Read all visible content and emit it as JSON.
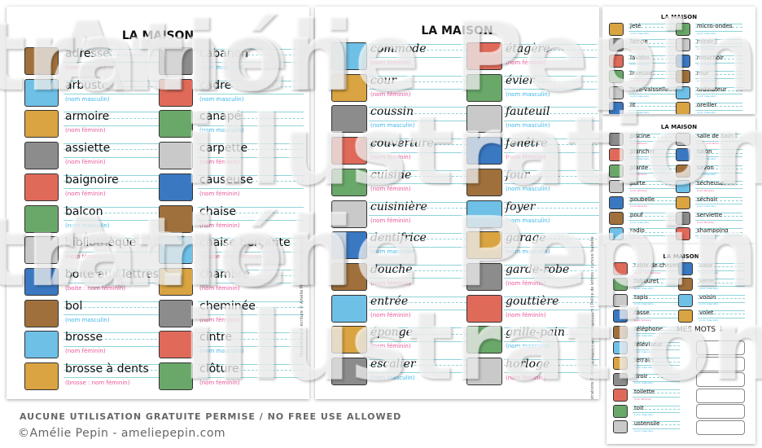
{
  "cards": [
    {
      "title": "LA MAISON",
      "style": "print",
      "side_text": "Illustrations et écriture © Amélie Pepin • ameliepepin.com",
      "columns": [
        [
          {
            "word": "adresse",
            "note": "(nom féminin)",
            "g": "f",
            "icon": "house-entrance"
          },
          {
            "word": "arbuste",
            "note": "(nom masculin)",
            "g": "m",
            "icon": "house-shrub"
          },
          {
            "word": "armoire",
            "note": "(nom féminin)",
            "g": "f",
            "icon": "cabinet"
          },
          {
            "word": "assiette",
            "note": "(nom féminin)",
            "g": "f",
            "icon": "plate"
          },
          {
            "word": "baignoire",
            "note": "(nom féminin)",
            "g": "f",
            "icon": "bathtub"
          },
          {
            "word": "balcon",
            "note": "(nom masculin)",
            "g": "m",
            "icon": "balcony"
          },
          {
            "word": "bibliothèque",
            "note": "(nom féminin)",
            "g": "f",
            "icon": "bookshelf"
          },
          {
            "word": "boite aux lettres",
            "note": "(boite : nom féminin)",
            "g": "f",
            "icon": "mailbox"
          },
          {
            "word": "bol",
            "note": "(nom masculin)",
            "g": "m",
            "icon": "bowl"
          },
          {
            "word": "brosse",
            "note": "(nom féminin)",
            "g": "f",
            "icon": "hairbrush"
          },
          {
            "word": "brosse à dents",
            "note": "(brosse : nom féminin)",
            "g": "f",
            "icon": "toothbrush"
          }
        ],
        [
          {
            "word": "cabanon",
            "note": "(nom masculin)",
            "g": "m",
            "icon": "shed"
          },
          {
            "word": "cadre",
            "note": "(nom masculin)",
            "g": "m",
            "icon": "picture-frame"
          },
          {
            "word": "canapé",
            "note": "(nom masculin)",
            "g": "m",
            "icon": "sofa"
          },
          {
            "word": "carpette",
            "note": "(nom féminin)",
            "g": "f",
            "icon": "rug"
          },
          {
            "word": "causeuse",
            "note": "(nom féminin)",
            "g": "f",
            "icon": "loveseat"
          },
          {
            "word": "chaise",
            "note": "(nom féminin)",
            "g": "f",
            "icon": "chair"
          },
          {
            "word": "chaise berçante",
            "note": "(chaise : nom féminin)",
            "g": "f",
            "icon": "rocking-chair"
          },
          {
            "word": "chambre",
            "note": "(nom féminin)",
            "g": "f",
            "icon": "bedroom"
          },
          {
            "word": "cheminée",
            "note": "(nom féminin)",
            "g": "f",
            "icon": "chimney"
          },
          {
            "word": "cintre",
            "note": "(nom masculin)",
            "g": "m",
            "icon": "hanger"
          },
          {
            "word": "clôture",
            "note": "(nom féminin)",
            "g": "f",
            "icon": "fence"
          }
        ]
      ]
    },
    {
      "title": "LA MAISON",
      "style": "cursive",
      "side_text": "Illustrations © Amélie Pepin • ameliepepin.com | Police de lettres : cursive Isabelle",
      "columns": [
        [
          {
            "word": "commode",
            "note": "(nom féminin)",
            "g": "f",
            "icon": "dresser"
          },
          {
            "word": "cour",
            "note": "(nom féminin)",
            "g": "f",
            "icon": "yard"
          },
          {
            "word": "coussin",
            "note": "(nom masculin)",
            "g": "m",
            "icon": "cushion"
          },
          {
            "word": "couverture",
            "note": "(nom féminin)",
            "g": "f",
            "icon": "house-roof"
          },
          {
            "word": "cuisine",
            "note": "(nom féminin)",
            "g": "f",
            "icon": "kitchen"
          },
          {
            "word": "cuisinière",
            "note": "(nom féminin)",
            "g": "f",
            "icon": "stove"
          },
          {
            "word": "dentifrice",
            "note": "(nom masculin)",
            "g": "m",
            "icon": "toothpaste"
          },
          {
            "word": "douche",
            "note": "(nom féminin)",
            "g": "f",
            "icon": "shower"
          },
          {
            "word": "entrée",
            "note": "(nom féminin)",
            "g": "f",
            "icon": "entrance"
          },
          {
            "word": "éponge",
            "note": "(nom féminin)",
            "g": "f",
            "icon": "sponge"
          },
          {
            "word": "escalier",
            "note": "(nom masculin)",
            "g": "m",
            "icon": "stairs"
          }
        ],
        [
          {
            "word": "étagère",
            "note": "(nom féminin)",
            "g": "f",
            "icon": "shelf"
          },
          {
            "word": "évier",
            "note": "(nom masculin)",
            "g": "m",
            "icon": "sink"
          },
          {
            "word": "fauteuil",
            "note": "(nom masculin)",
            "g": "m",
            "icon": "armchair"
          },
          {
            "word": "fenêtre",
            "note": "(nom féminin)",
            "g": "f",
            "icon": "window"
          },
          {
            "word": "four",
            "note": "(nom masculin)",
            "g": "m",
            "icon": "oven"
          },
          {
            "word": "foyer",
            "note": "(nom masculin)",
            "g": "m",
            "icon": "fireplace"
          },
          {
            "word": "garage",
            "note": "(nom masculin)",
            "g": "m",
            "icon": "garage"
          },
          {
            "word": "garde-robe",
            "note": "(nom féminin)",
            "g": "f",
            "icon": "wardrobe"
          },
          {
            "word": "gouttière",
            "note": "(nom féminin)",
            "g": "f",
            "icon": "gutter"
          },
          {
            "word": "grille-pain",
            "note": "(nom masculin)",
            "g": "m",
            "icon": "toaster"
          },
          {
            "word": "horloge",
            "note": "(nom féminin)",
            "g": "f",
            "icon": "clock"
          }
        ]
      ]
    },
    {
      "title": "LA MAISON",
      "style": "small",
      "columns": [
        [
          {
            "word": "jeté",
            "note": "(nom masculin)",
            "g": "m",
            "icon": "throw"
          },
          {
            "word": "lampe",
            "note": "(nom féminin)",
            "g": "f",
            "icon": "lamp"
          },
          {
            "word": "lavabo",
            "note": "(nom masculin)",
            "g": "m",
            "icon": "washbasin"
          },
          {
            "word": "laveuse",
            "note": "(nom féminin)",
            "g": "f",
            "icon": "washer"
          },
          {
            "word": "lave-vaisselle",
            "note": "(nom masculin)",
            "g": "m",
            "icon": "dishwasher"
          },
          {
            "word": "lit",
            "note": "(nom masculin)",
            "g": "m",
            "icon": "bed"
          }
        ],
        [
          {
            "word": "micro-ondes",
            "note": "(nom masculin)",
            "g": "m",
            "icon": "microwave"
          },
          {
            "word": "miroir",
            "note": "(nom masculin)",
            "g": "m",
            "icon": "mirror"
          },
          {
            "word": "mouchoir",
            "note": "(nom masculin)",
            "g": "m",
            "icon": "tissue-box"
          },
          {
            "word": "mur",
            "note": "(nom masculin)",
            "g": "m",
            "icon": "wall"
          },
          {
            "word": "ordinateur",
            "note": "(nom masculin)",
            "g": "m",
            "icon": "computer"
          },
          {
            "word": "oreiller",
            "note": "(nom masculin)",
            "g": "m",
            "icon": "pillow"
          }
        ]
      ]
    },
    {
      "title": "LA MAISON",
      "style": "small",
      "columns": [
        [
          {
            "word": "piscine",
            "note": "(nom féminin)",
            "g": "f",
            "icon": "pool"
          },
          {
            "word": "plancher",
            "note": "(nom masculin)",
            "g": "m",
            "icon": "floor"
          },
          {
            "word": "plante",
            "note": "(nom féminin)",
            "g": "f",
            "icon": "plant"
          },
          {
            "word": "porte",
            "note": "(nom féminin)",
            "g": "f",
            "icon": "door"
          },
          {
            "word": "poubelle",
            "note": "(nom féminin)",
            "g": "f",
            "icon": "trash-can"
          },
          {
            "word": "pouf",
            "note": "(nom masculin)",
            "g": "m",
            "icon": "beanbag"
          },
          {
            "word": "radio",
            "note": "(nom féminin)",
            "g": "f",
            "icon": "radio"
          }
        ],
        [
          {
            "word": "salle de bain",
            "note": "(salle : nom féminin)",
            "g": "f",
            "icon": "bathroom"
          },
          {
            "word": "salon",
            "note": "(nom masculin)",
            "g": "m",
            "icon": "living-room"
          },
          {
            "word": "savon",
            "note": "(nom masculin)",
            "g": "m",
            "icon": "soap"
          },
          {
            "word": "sécheuse",
            "note": "(nom féminin)",
            "g": "f",
            "icon": "dryer"
          },
          {
            "word": "séchoir",
            "note": "(nom masculin)",
            "g": "m",
            "icon": "hair-dryer"
          },
          {
            "word": "serviette",
            "note": "(nom féminin)",
            "g": "f",
            "icon": "towel"
          },
          {
            "word": "shampoing",
            "note": "(nom masculin)",
            "g": "m",
            "icon": "shampoo"
          }
        ]
      ]
    },
    {
      "title": "LA MAISON",
      "style": "small",
      "mes_mots": "MES MOTS ↓",
      "box_count": 6,
      "columns": [
        [
          {
            "word": "table de chevet",
            "note": "(table : nom féminin)",
            "g": "f",
            "icon": "nightstand"
          },
          {
            "word": "tabouret",
            "note": "(nom masculin)",
            "g": "m",
            "icon": "stool"
          },
          {
            "word": "tapis",
            "note": "(nom masculin)",
            "g": "m",
            "icon": "carpet"
          },
          {
            "word": "tasse",
            "note": "(nom féminin)",
            "g": "f",
            "icon": "cup"
          },
          {
            "word": "téléphone",
            "note": "(nom masculin)",
            "g": "m",
            "icon": "phone"
          },
          {
            "word": "téléviseur",
            "note": "(nom masculin)",
            "g": "m",
            "icon": "tv"
          },
          {
            "word": "terrain",
            "note": "(nom masculin)",
            "g": "m",
            "icon": "lot"
          },
          {
            "word": "tiroir",
            "note": "(nom masculin)",
            "g": "m",
            "icon": "drawer"
          },
          {
            "word": "toilette",
            "note": "(nom féminin)",
            "g": "f",
            "icon": "toilet"
          },
          {
            "word": "toit",
            "note": "(nom masculin)",
            "g": "m",
            "icon": "roof"
          },
          {
            "word": "ustensile",
            "note": "(nom masculin)",
            "g": "m",
            "icon": "utensils"
          }
        ],
        [
          {
            "word": "vase",
            "note": "(nom masculin)",
            "g": "m",
            "icon": "vase"
          },
          {
            "word": "verre",
            "note": "(nom masculin)",
            "g": "m",
            "icon": "glass"
          },
          {
            "word": "voisin",
            "note": "(nom masculin)",
            "g": "m",
            "icon": "neighbor-houses"
          },
          {
            "word": "volet",
            "note": "(nom masculin)",
            "g": "m",
            "icon": "shutter"
          }
        ]
      ]
    }
  ],
  "watermark": {
    "line1": "Amélie Pepin",
    "line2": "illustration"
  },
  "footer": {
    "notice": "AUCUNE UTILISATION GRATUITE PERMISE / NO FREE USE ALLOWED",
    "copyright": "©Amélie Pepin - ameliepepin.com"
  },
  "colors": {
    "feminine": "#e8559a",
    "masculine": "#3bb5e8",
    "ruled_lines": "#8fd3d9"
  }
}
